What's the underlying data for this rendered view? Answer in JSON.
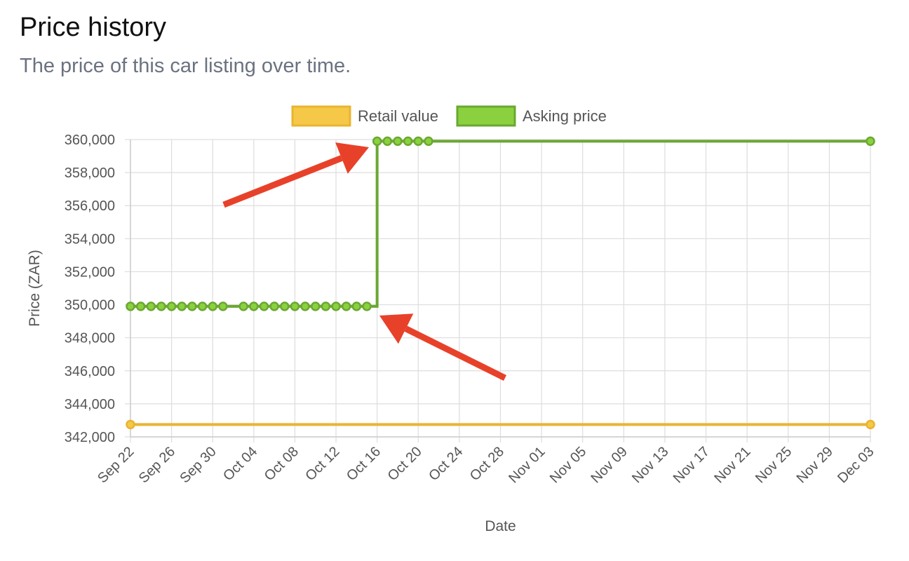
{
  "header": {
    "title": "Price history",
    "subtitle": "The price of this car listing over time."
  },
  "colors": {
    "retail": "#eab430",
    "retail_fill": "#f5c847",
    "asking": "#6aa832",
    "asking_fill": "#8bd13f",
    "grid": "#dddddd",
    "axis_text": "#555555",
    "arrow": "#e8412a"
  },
  "chart_data": {
    "type": "line",
    "xlabel": "Date",
    "ylabel": "Price (ZAR)",
    "ylim": [
      342000,
      360000
    ],
    "y_ticks": [
      "342,000",
      "344,000",
      "346,000",
      "348,000",
      "350,000",
      "352,000",
      "354,000",
      "356,000",
      "358,000",
      "360,000"
    ],
    "x_ticks": [
      "Sep 22",
      "Sep 26",
      "Sep 30",
      "Oct 04",
      "Oct 08",
      "Oct 12",
      "Oct 16",
      "Oct 20",
      "Oct 24",
      "Oct 28",
      "Nov 01",
      "Nov 05",
      "Nov 09",
      "Nov 13",
      "Nov 17",
      "Nov 21",
      "Nov 25",
      "Nov 29",
      "Dec 03"
    ],
    "xlim": [
      "Sep 22",
      "Dec 03"
    ],
    "grid": true,
    "legend_position": "top-center",
    "stepped": true,
    "annotations": [
      "red arrow pointing at the price increase around Oct 16",
      "red arrow pointing at the step corner around Oct 16"
    ],
    "series": [
      {
        "name": "Retail value",
        "points": [
          {
            "x": "Sep 22",
            "y": 342750
          },
          {
            "x": "Dec 03",
            "y": 342750
          }
        ]
      },
      {
        "name": "Asking price",
        "points": [
          {
            "x": "Sep 22",
            "y": 349900
          },
          {
            "x": "Sep 23",
            "y": 349900
          },
          {
            "x": "Sep 24",
            "y": 349900
          },
          {
            "x": "Sep 25",
            "y": 349900
          },
          {
            "x": "Sep 26",
            "y": 349900
          },
          {
            "x": "Sep 27",
            "y": 349900
          },
          {
            "x": "Sep 28",
            "y": 349900
          },
          {
            "x": "Sep 29",
            "y": 349900
          },
          {
            "x": "Sep 30",
            "y": 349900
          },
          {
            "x": "Oct 01",
            "y": 349900
          },
          {
            "x": "Oct 03",
            "y": 349900
          },
          {
            "x": "Oct 04",
            "y": 349900
          },
          {
            "x": "Oct 05",
            "y": 349900
          },
          {
            "x": "Oct 06",
            "y": 349900
          },
          {
            "x": "Oct 07",
            "y": 349900
          },
          {
            "x": "Oct 08",
            "y": 349900
          },
          {
            "x": "Oct 09",
            "y": 349900
          },
          {
            "x": "Oct 10",
            "y": 349900
          },
          {
            "x": "Oct 11",
            "y": 349900
          },
          {
            "x": "Oct 12",
            "y": 349900
          },
          {
            "x": "Oct 13",
            "y": 349900
          },
          {
            "x": "Oct 14",
            "y": 349900
          },
          {
            "x": "Oct 15",
            "y": 349900
          },
          {
            "x": "Oct 16",
            "y": 359900
          },
          {
            "x": "Oct 17",
            "y": 359900
          },
          {
            "x": "Oct 18",
            "y": 359900
          },
          {
            "x": "Oct 19",
            "y": 359900
          },
          {
            "x": "Oct 20",
            "y": 359900
          },
          {
            "x": "Oct 21",
            "y": 359900
          },
          {
            "x": "Dec 03",
            "y": 359900
          }
        ]
      }
    ]
  }
}
